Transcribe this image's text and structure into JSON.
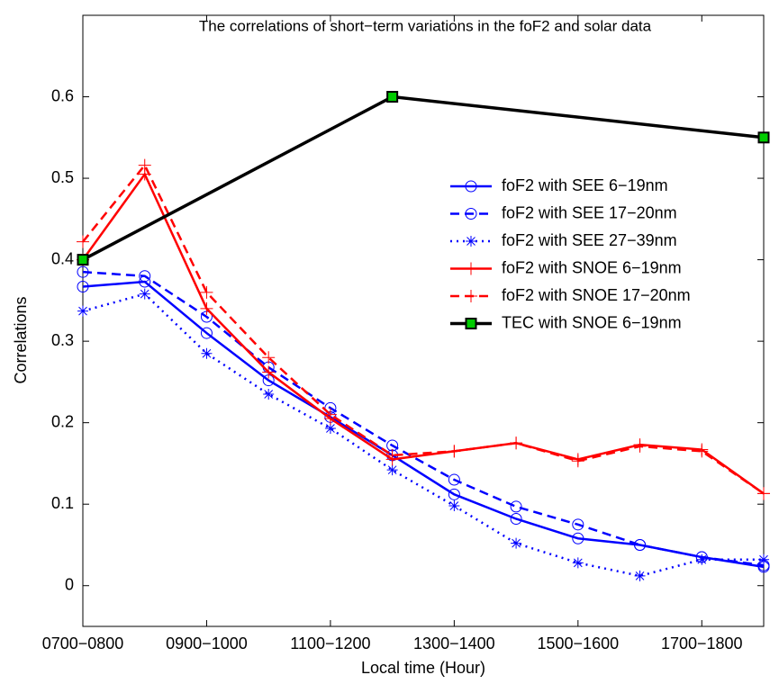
{
  "chart_data": {
    "type": "line",
    "title": "The correlations of short−term variations in the foF2 and solar data",
    "xlabel": "Local time (Hour)",
    "ylabel": "Correlations",
    "x": [
      0,
      1,
      2,
      3,
      4,
      5,
      6,
      7,
      8,
      9,
      10,
      11
    ],
    "xlim": [
      0,
      11
    ],
    "xticks": [
      {
        "value": 0,
        "label": "0700−0800"
      },
      {
        "value": 2,
        "label": "0900−1000"
      },
      {
        "value": 4,
        "label": "1100−1200"
      },
      {
        "value": 6,
        "label": "1300−1400"
      },
      {
        "value": 8,
        "label": "1500−1600"
      },
      {
        "value": 10,
        "label": "1700−1800"
      }
    ],
    "ylim": [
      -0.05,
      0.7
    ],
    "yticks": [
      0,
      0.1,
      0.2,
      0.3,
      0.4,
      0.5,
      0.6
    ],
    "legend_position": "right",
    "series": [
      {
        "name": "foF2 with SEE 6−19nm",
        "color": "#0000ff",
        "line_style": "solid",
        "marker": "circle",
        "values": [
          0.367,
          0.373,
          0.31,
          0.252,
          0.207,
          0.16,
          0.112,
          0.082,
          0.058,
          0.05,
          0.035,
          0.023
        ]
      },
      {
        "name": "foF2 with SEE 17−20nm",
        "color": "#0000ff",
        "line_style": "dashed",
        "marker": "circle",
        "values": [
          0.385,
          0.38,
          0.33,
          0.268,
          0.218,
          0.172,
          0.13,
          0.097,
          0.075,
          0.05,
          0.035,
          0.025
        ]
      },
      {
        "name": "foF2 with SEE 27−39nm",
        "color": "#0000ff",
        "line_style": "dotted",
        "marker": "star",
        "values": [
          0.337,
          0.358,
          0.285,
          0.235,
          0.193,
          0.142,
          0.098,
          0.052,
          0.028,
          0.012,
          0.032,
          0.032
        ]
      },
      {
        "name": "foF2 with SNOE 6−19nm",
        "color": "#ff0000",
        "line_style": "solid",
        "marker": "plus",
        "values": [
          0.4,
          0.505,
          0.34,
          0.262,
          0.205,
          0.155,
          0.165,
          0.175,
          0.155,
          0.173,
          0.167,
          0.113
        ]
      },
      {
        "name": "foF2 with SNOE 17−20nm",
        "color": "#ff0000",
        "line_style": "dashed",
        "marker": "plus",
        "values": [
          0.422,
          0.516,
          0.36,
          0.28,
          0.21,
          0.16,
          0.165,
          0.175,
          0.153,
          0.171,
          0.165,
          0.113
        ]
      },
      {
        "name": "TEC with SNOE 6−19nm",
        "color": "#000000",
        "line_style": "thick",
        "marker": "square",
        "marker_color": "#00cc00",
        "x": [
          0,
          5,
          11
        ],
        "values": [
          0.4,
          0.6,
          0.55
        ]
      }
    ]
  }
}
